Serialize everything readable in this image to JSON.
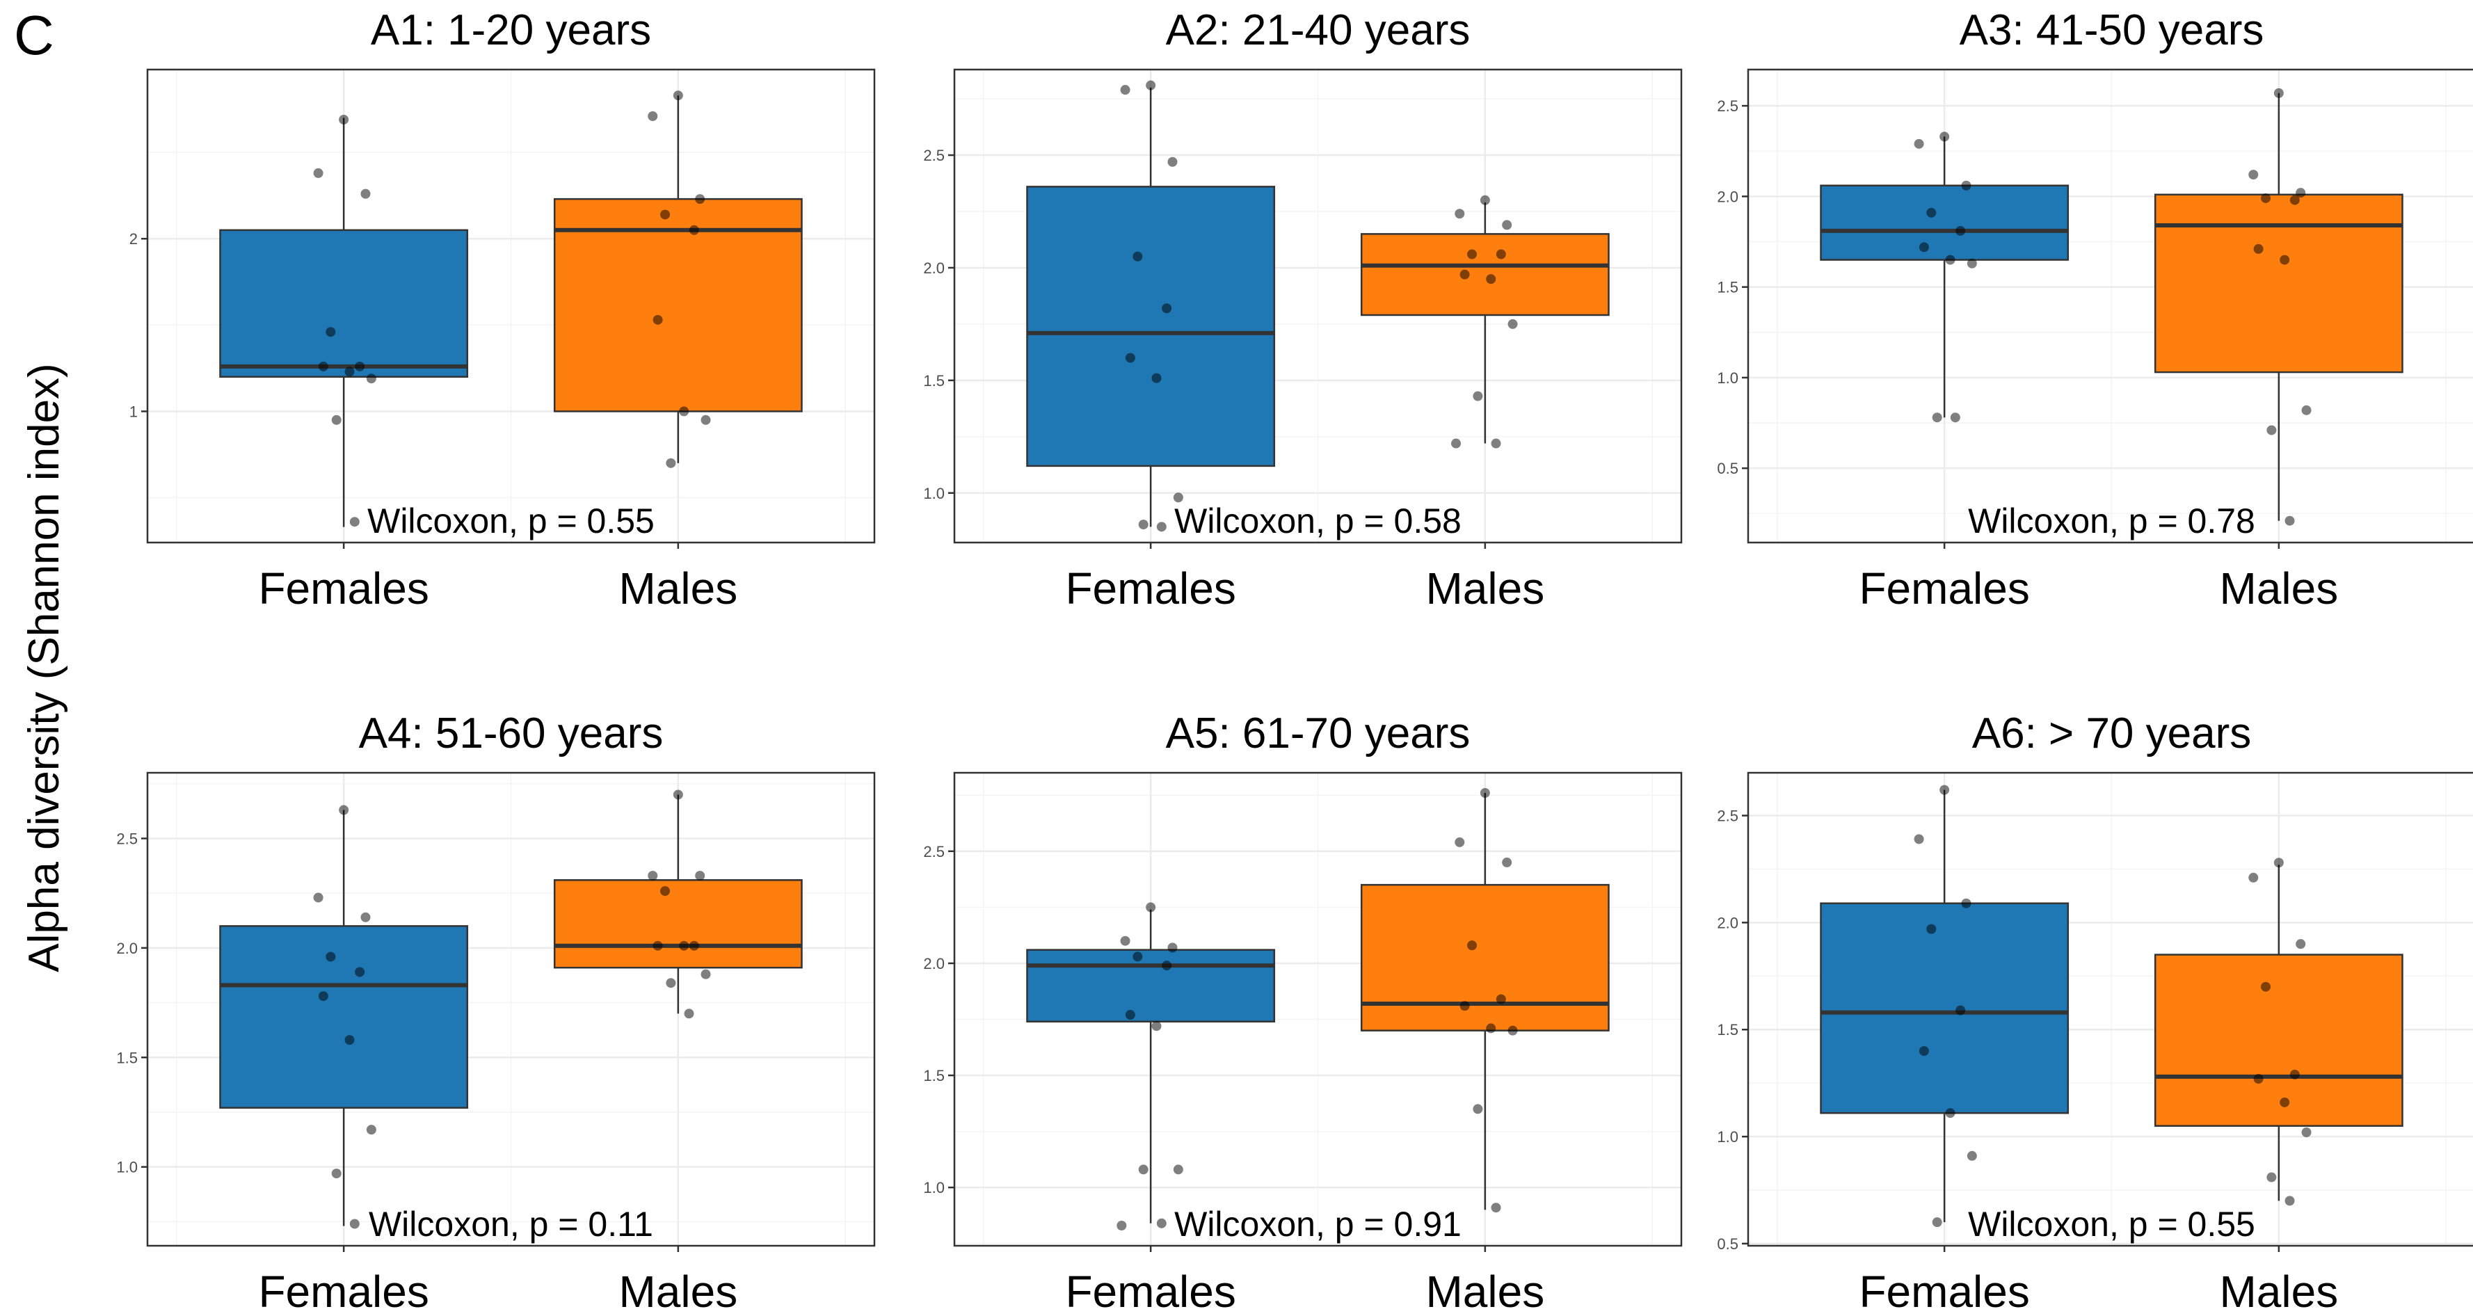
{
  "panel_label": "C",
  "y_axis_label": "Alpha diversity (Shannon index)",
  "colors": {
    "Females": "#1f77b4",
    "Males": "#ff7f0e"
  },
  "chart_data": [
    {
      "type": "box",
      "title": "A1:  1-20 years",
      "categories": [
        "Females",
        "Males"
      ],
      "ylim": [
        0.24,
        2.98
      ],
      "yticks": [
        1,
        2
      ],
      "ytick_labels": [
        "1",
        "2"
      ],
      "annotation": "Wilcoxon, p = 0.55",
      "boxes": [
        {
          "group": "Females",
          "min": 0.33,
          "q1": 1.2,
          "median": 1.26,
          "q3": 2.05,
          "max": 2.7
        },
        {
          "group": "Males",
          "min": 0.7,
          "q1": 1.0,
          "median": 2.05,
          "q3": 2.23,
          "max": 2.83
        }
      ],
      "points": [
        {
          "group": "Females",
          "values": [
            2.69,
            2.38,
            2.26,
            1.46,
            1.26,
            1.26,
            1.23,
            1.19,
            0.95,
            0.36
          ]
        },
        {
          "group": "Males",
          "values": [
            2.83,
            2.71,
            2.23,
            2.14,
            2.05,
            1.53,
            1.0,
            0.95,
            0.7
          ]
        }
      ]
    },
    {
      "type": "box",
      "title": "A2:  21-40 years",
      "categories": [
        "Females",
        "Males"
      ],
      "ylim": [
        0.78,
        2.88
      ],
      "yticks": [
        1.0,
        1.5,
        2.0,
        2.5
      ],
      "ytick_labels": [
        "1.0",
        "1.5",
        "2.0",
        "2.5"
      ],
      "annotation": "Wilcoxon, p = 0.58",
      "boxes": [
        {
          "group": "Females",
          "min": 0.85,
          "q1": 1.12,
          "median": 1.71,
          "q3": 2.36,
          "max": 2.8
        },
        {
          "group": "Males",
          "min": 1.22,
          "q1": 1.79,
          "median": 2.01,
          "q3": 2.15,
          "max": 2.29
        }
      ],
      "points": [
        {
          "group": "Females",
          "values": [
            2.81,
            2.79,
            2.47,
            2.05,
            1.82,
            1.6,
            1.51,
            0.98,
            0.86,
            0.85
          ]
        },
        {
          "group": "Males",
          "values": [
            2.3,
            2.24,
            2.19,
            2.06,
            2.06,
            1.97,
            1.95,
            1.75,
            1.43,
            1.22,
            1.22
          ]
        }
      ]
    },
    {
      "type": "box",
      "title": "A3:  41-50 years",
      "categories": [
        "Females",
        "Males"
      ],
      "ylim": [
        0.09,
        2.7
      ],
      "yticks": [
        0.5,
        1.0,
        1.5,
        2.0,
        2.5
      ],
      "ytick_labels": [
        "0.5",
        "1.0",
        "1.5",
        "2.0",
        "2.5"
      ],
      "annotation": "Wilcoxon, p = 0.78",
      "boxes": [
        {
          "group": "Females",
          "min": 0.78,
          "q1": 1.65,
          "median": 1.81,
          "q3": 2.06,
          "max": 2.33
        },
        {
          "group": "Males",
          "min": 0.21,
          "q1": 1.03,
          "median": 1.84,
          "q3": 2.01,
          "max": 2.57
        }
      ],
      "points": [
        {
          "group": "Females",
          "values": [
            2.33,
            2.29,
            2.06,
            1.91,
            1.81,
            1.72,
            1.65,
            1.63,
            0.78,
            0.78
          ]
        },
        {
          "group": "Males",
          "values": [
            2.57,
            2.12,
            2.02,
            1.99,
            1.98,
            1.71,
            1.65,
            0.82,
            0.71,
            0.21
          ]
        }
      ]
    },
    {
      "type": "box",
      "title": "A4:  51-60 years",
      "categories": [
        "Females",
        "Males"
      ],
      "ylim": [
        0.64,
        2.8
      ],
      "yticks": [
        1.0,
        1.5,
        2.0,
        2.5
      ],
      "ytick_labels": [
        "1.0",
        "1.5",
        "2.0",
        "2.5"
      ],
      "annotation": "Wilcoxon, p = 0.11",
      "boxes": [
        {
          "group": "Females",
          "min": 0.73,
          "q1": 1.27,
          "median": 1.83,
          "q3": 2.1,
          "max": 2.63
        },
        {
          "group": "Males",
          "min": 1.7,
          "q1": 1.91,
          "median": 2.01,
          "q3": 2.31,
          "max": 2.7
        }
      ],
      "points": [
        {
          "group": "Females",
          "values": [
            2.63,
            2.23,
            2.14,
            1.96,
            1.89,
            1.78,
            1.58,
            1.17,
            0.97,
            0.74
          ]
        },
        {
          "group": "Males",
          "values": [
            2.7,
            2.33,
            2.33,
            2.26,
            2.01,
            2.01,
            2.01,
            1.88,
            1.84,
            1.7
          ]
        }
      ]
    },
    {
      "type": "box",
      "title": "A5:  61-70 years",
      "categories": [
        "Females",
        "Males"
      ],
      "ylim": [
        0.74,
        2.85
      ],
      "yticks": [
        1.0,
        1.5,
        2.0,
        2.5
      ],
      "ytick_labels": [
        "1.0",
        "1.5",
        "2.0",
        "2.5"
      ],
      "annotation": "Wilcoxon, p = 0.91",
      "boxes": [
        {
          "group": "Females",
          "min": 0.84,
          "q1": 1.74,
          "median": 1.99,
          "q3": 2.06,
          "max": 2.24
        },
        {
          "group": "Males",
          "min": 0.9,
          "q1": 1.7,
          "median": 1.82,
          "q3": 2.35,
          "max": 2.76
        }
      ],
      "points": [
        {
          "group": "Females",
          "values": [
            2.25,
            2.1,
            2.07,
            2.03,
            1.99,
            1.77,
            1.72,
            1.08,
            1.08,
            0.84,
            0.83
          ]
        },
        {
          "group": "Males",
          "values": [
            2.76,
            2.54,
            2.45,
            2.08,
            1.84,
            1.81,
            1.71,
            1.7,
            1.35,
            0.91
          ]
        }
      ]
    },
    {
      "type": "box",
      "title": "A6:  > 70 years",
      "categories": [
        "Females",
        "Males"
      ],
      "ylim": [
        0.49,
        2.7
      ],
      "yticks": [
        0.5,
        1.0,
        1.5,
        2.0,
        2.5
      ],
      "ytick_labels": [
        "0.5",
        "1.0",
        "1.5",
        "2.0",
        "2.5"
      ],
      "annotation": "Wilcoxon, p = 0.55",
      "boxes": [
        {
          "group": "Females",
          "min": 0.6,
          "q1": 1.11,
          "median": 1.58,
          "q3": 2.09,
          "max": 2.62
        },
        {
          "group": "Males",
          "min": 0.7,
          "q1": 1.05,
          "median": 1.28,
          "q3": 1.85,
          "max": 2.27
        }
      ],
      "points": [
        {
          "group": "Females",
          "values": [
            2.62,
            2.39,
            2.09,
            1.97,
            1.59,
            1.4,
            1.11,
            0.91,
            0.6
          ]
        },
        {
          "group": "Males",
          "values": [
            2.28,
            2.21,
            1.9,
            1.7,
            1.29,
            1.27,
            1.16,
            1.02,
            0.81,
            0.7
          ]
        }
      ]
    }
  ]
}
